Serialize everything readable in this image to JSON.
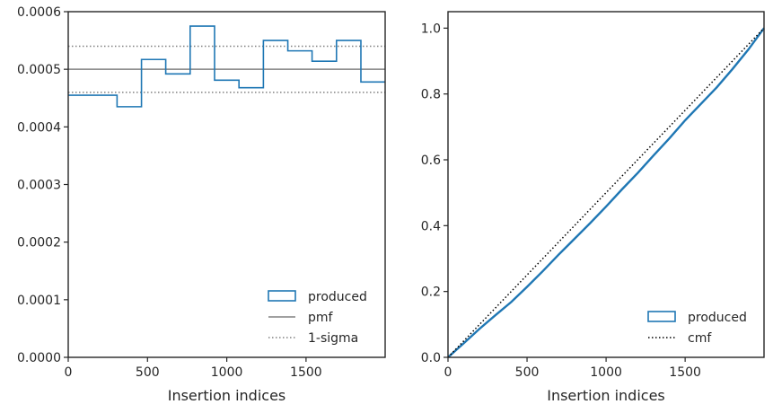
{
  "colors": {
    "series": "#1f77b4",
    "reference": "#808080",
    "cmf": "#000000",
    "axes": "#262626"
  },
  "chart_data": [
    {
      "type": "step",
      "xlabel": "Insertion indices",
      "ylabel": "",
      "xlim": [
        0,
        1999
      ],
      "ylim": [
        0,
        0.0006
      ],
      "xticks": [
        0,
        500,
        1000,
        1500
      ],
      "yticks": [
        0,
        0.0001,
        0.0002,
        0.0003,
        0.0004,
        0.0005,
        0.0006
      ],
      "xtick_labels": [
        "0",
        "500",
        "1000",
        "1500"
      ],
      "ytick_labels": [
        "0.0000",
        "0.0001",
        "0.0002",
        "0.0003",
        "0.0004",
        "0.0005",
        "0.0006"
      ],
      "bin_edges": [
        0,
        154,
        308,
        462,
        615,
        769,
        923,
        1077,
        1231,
        1385,
        1538,
        1692,
        1846,
        1999
      ],
      "series": [
        {
          "name": "produced",
          "style": "step",
          "values": [
            0.000455,
            0.000455,
            0.000435,
            0.000517,
            0.000492,
            0.000575,
            0.000481,
            0.000468,
            0.00055,
            0.000532,
            0.000514,
            0.00055,
            0.000478
          ]
        },
        {
          "name": "pmf",
          "style": "hline",
          "value": 0.0005
        },
        {
          "name": "1-sigma",
          "style": "hline-dotted",
          "values": [
            0.00054,
            0.00046
          ]
        }
      ],
      "legend": {
        "position": "lower right",
        "entries": [
          {
            "label": "produced",
            "kind": "patch"
          },
          {
            "label": "pmf",
            "kind": "solid"
          },
          {
            "label": "1-sigma",
            "kind": "dotted"
          }
        ]
      },
      "grid": false
    },
    {
      "type": "line",
      "xlabel": "Insertion indices",
      "ylabel": "",
      "xlim": [
        0,
        1999
      ],
      "ylim": [
        0,
        1.05
      ],
      "xticks": [
        0,
        500,
        1000,
        1500
      ],
      "yticks": [
        0,
        0.2,
        0.4,
        0.6,
        0.8,
        1.0
      ],
      "xtick_labels": [
        "0",
        "500",
        "1000",
        "1500"
      ],
      "ytick_labels": [
        "0.0",
        "0.2",
        "0.4",
        "0.6",
        "0.8",
        "1.0"
      ],
      "series": [
        {
          "name": "produced",
          "style": "step",
          "x": [
            0,
            100,
            200,
            300,
            400,
            500,
            600,
            700,
            800,
            900,
            1000,
            1100,
            1200,
            1300,
            1400,
            1500,
            1600,
            1700,
            1800,
            1900,
            1999
          ],
          "y": [
            0,
            0.043,
            0.087,
            0.128,
            0.168,
            0.214,
            0.262,
            0.312,
            0.36,
            0.408,
            0.458,
            0.51,
            0.56,
            0.613,
            0.665,
            0.72,
            0.77,
            0.82,
            0.876,
            0.935,
            1.0
          ]
        },
        {
          "name": "cmf",
          "style": "dotted",
          "x": [
            0,
            1999
          ],
          "y": [
            0,
            1.0
          ]
        }
      ],
      "legend": {
        "position": "lower right",
        "entries": [
          {
            "label": "produced",
            "kind": "patch"
          },
          {
            "label": "cmf",
            "kind": "dotted"
          }
        ]
      },
      "grid": false
    }
  ]
}
